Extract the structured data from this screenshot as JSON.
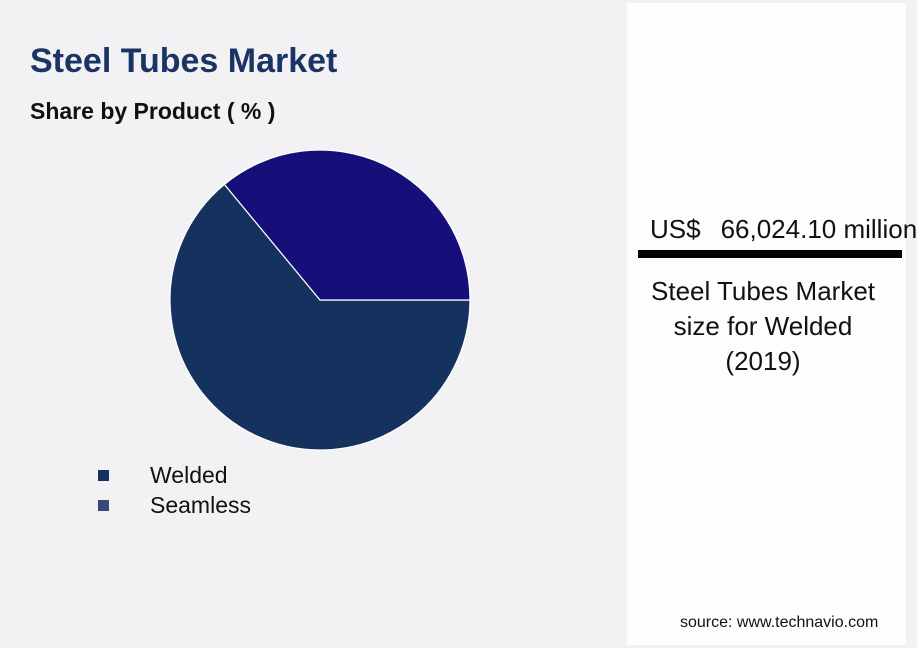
{
  "title": "Steel Tubes Market",
  "subtitle": "Share by Product ( % )",
  "highlight": {
    "currency": "US$",
    "value": "66,024.10 million",
    "caption": "Steel Tubes Market size for Welded (2019)"
  },
  "source": "source: www.technavio.com",
  "colors": {
    "welded": "#15325f",
    "seamless": "#170f79",
    "title": "#1b3464"
  },
  "legend": [
    {
      "label": "Welded",
      "color": "#15325f"
    },
    {
      "label": "Seamless",
      "color": "#39487b"
    }
  ],
  "chart_data": {
    "type": "pie",
    "title": "Share by Product ( % )",
    "slices": [
      {
        "label": "Welded",
        "value": 64,
        "color": "#15325f"
      },
      {
        "label": "Seamless",
        "value": 36,
        "color": "#170f79"
      }
    ],
    "start_angle_deg": 0,
    "direction": "clockwise",
    "legend_position": "bottom-left"
  }
}
